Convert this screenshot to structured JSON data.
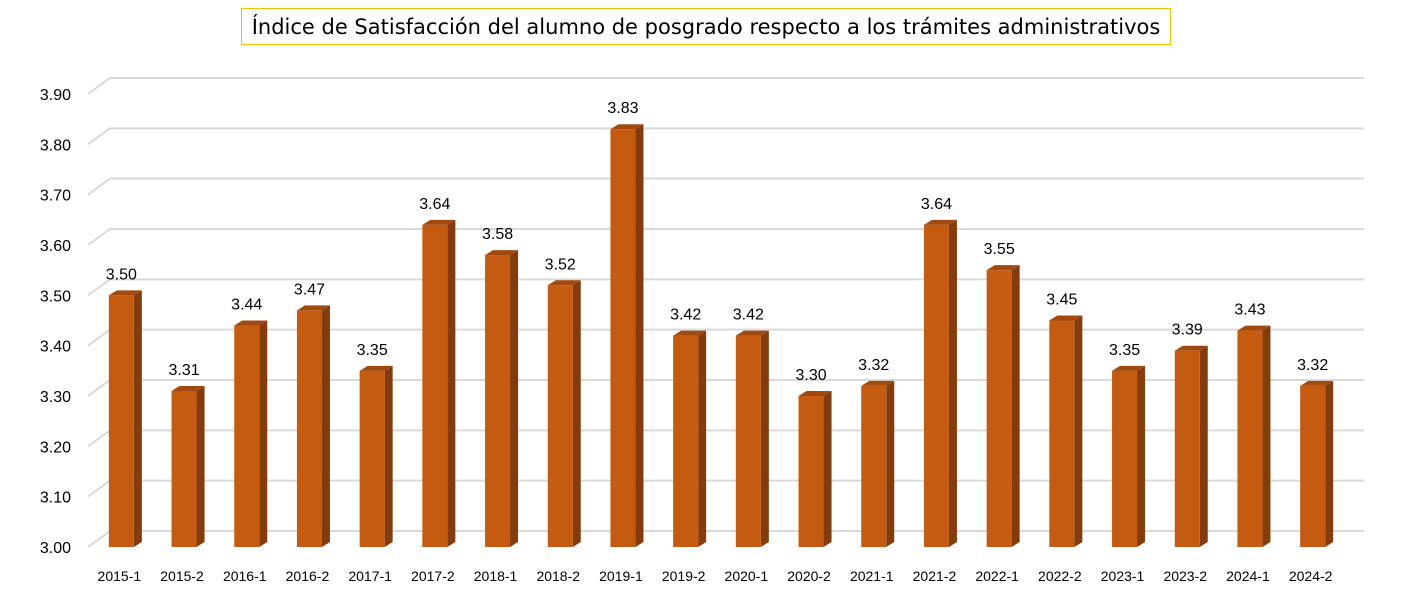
{
  "chart_data": {
    "type": "bar",
    "title": "Índice de Satisfacción del alumno de posgrado respecto a los trámites administrativos",
    "xlabel": "",
    "ylabel": "",
    "ylim": [
      3.0,
      3.9
    ],
    "yticks": [
      "3.00",
      "3.10",
      "3.20",
      "3.30",
      "3.40",
      "3.50",
      "3.60",
      "3.70",
      "3.80",
      "3.90"
    ],
    "categories": [
      "2015-1",
      "2015-2",
      "2016-1",
      "2016-2",
      "2017-1",
      "2017-2",
      "2018-1",
      "2018-2",
      "2019-1",
      "2019-2",
      "2020-1",
      "2020-2",
      "2021-1",
      "2021-2",
      "2022-1",
      "2022-2",
      "2023-1",
      "2023-2",
      "2024-1",
      "2024-2"
    ],
    "values": [
      3.5,
      3.31,
      3.44,
      3.47,
      3.35,
      3.64,
      3.58,
      3.52,
      3.83,
      3.42,
      3.42,
      3.3,
      3.32,
      3.64,
      3.55,
      3.45,
      3.35,
      3.39,
      3.43,
      3.32
    ],
    "value_labels": [
      "3.50",
      "3.31",
      "3.44",
      "3.47",
      "3.35",
      "3.64",
      "3.58",
      "3.52",
      "3.83",
      "3.42",
      "3.42",
      "3.30",
      "3.32",
      "3.64",
      "3.55",
      "3.45",
      "3.35",
      "3.39",
      "3.43",
      "3.32"
    ],
    "grid": true,
    "legend": "none",
    "colors": {
      "bar_front": "#c55a11",
      "bar_side": "#843c0c",
      "bar_top": "#a04a10",
      "grid": "#d9d9d9"
    }
  }
}
